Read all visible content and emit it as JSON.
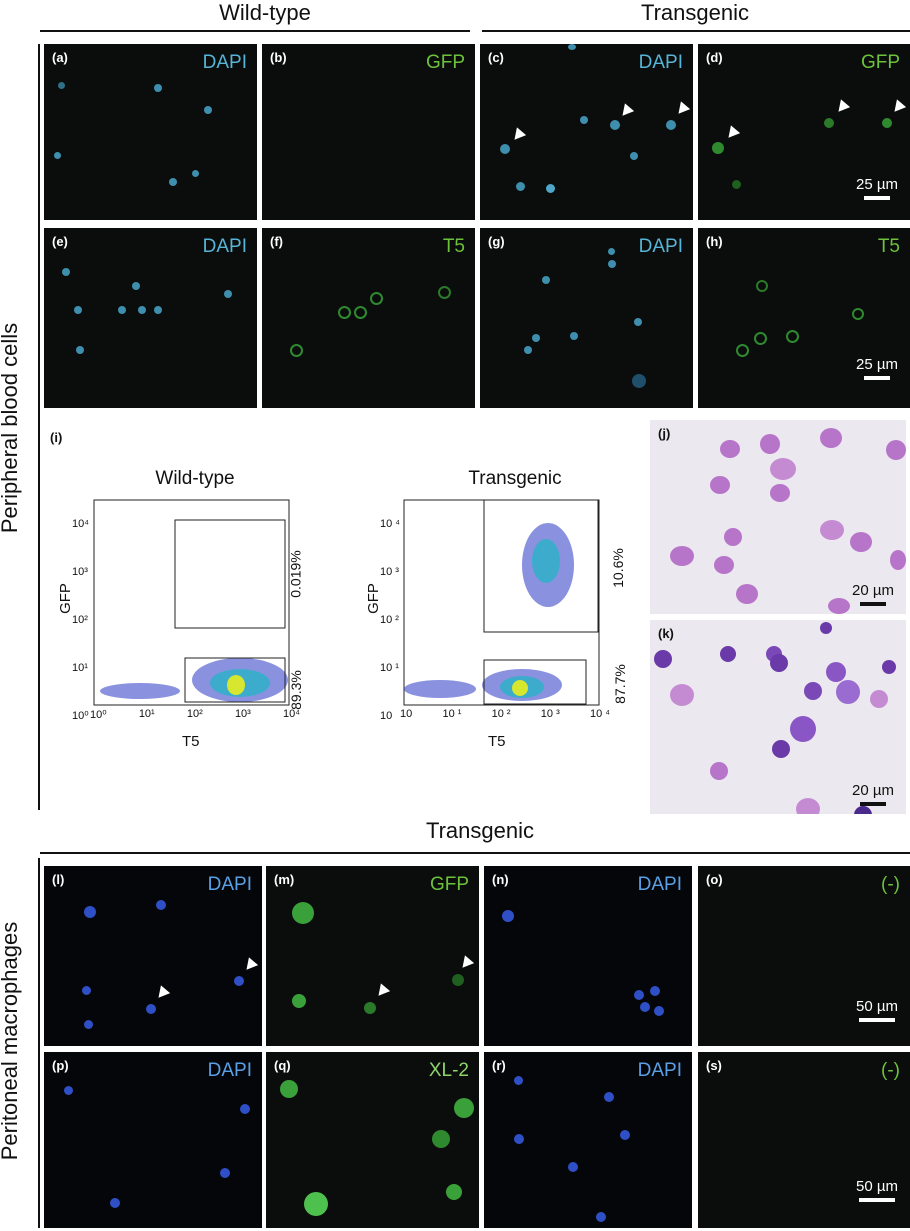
{
  "top": {
    "left_header": "Wild-type",
    "right_header": "Transgenic"
  },
  "side_labels": {
    "upper": "Peripheral blood cells",
    "lower": "Peritoneal macrophages"
  },
  "row1": [
    {
      "label": "(a)",
      "channel": "DAPI"
    },
    {
      "label": "(b)",
      "channel": "GFP"
    },
    {
      "label": "(c)",
      "channel": "DAPI"
    },
    {
      "label": "(d)",
      "channel": "GFP",
      "scale": "25 µm"
    }
  ],
  "row2": [
    {
      "label": "(e)",
      "channel": "DAPI"
    },
    {
      "label": "(f)",
      "channel": "T5"
    },
    {
      "label": "(g)",
      "channel": "DAPI"
    },
    {
      "label": "(h)",
      "channel": "T5",
      "scale": "25 µm"
    }
  ],
  "flow": {
    "label": "(i)",
    "plots": [
      {
        "title": "Wild-type",
        "ylabel": "GFP",
        "xlabel": "T5",
        "yticks": [
          "10⁴",
          "10³",
          "10²",
          "10¹",
          "10⁰"
        ],
        "xticks": [
          "10⁰",
          "10¹",
          "10²",
          "10³",
          "10⁴"
        ],
        "upper_pct": "0.019%",
        "lower_pct": "89.3%"
      },
      {
        "title": "Transgenic",
        "ylabel": "GFP",
        "xlabel": "T5",
        "yticks": [
          "10 ⁴",
          "10 ³",
          "10 ²",
          "10 ¹",
          "10"
        ],
        "xticks": [
          "10",
          "10 ¹",
          "10 ²",
          "10 ³",
          "10 ⁴"
        ],
        "upper_pct": "10.6%",
        "lower_pct": "87.7%"
      }
    ]
  },
  "stain": [
    {
      "label": "(j)",
      "scale": "20 µm"
    },
    {
      "label": "(k)",
      "scale": "20 µm"
    }
  ],
  "mid_header": "Transgenic",
  "row3": [
    {
      "label": "(l)",
      "channel": "DAPI"
    },
    {
      "label": "(m)",
      "channel": "GFP"
    },
    {
      "label": "(n)",
      "channel": "DAPI"
    },
    {
      "label": "(o)",
      "channel": "(-)",
      "scale": "50 µm"
    }
  ],
  "row4": [
    {
      "label": "(p)",
      "channel": "DAPI"
    },
    {
      "label": "(q)",
      "channel": "XL-2"
    },
    {
      "label": "(r)",
      "channel": "DAPI"
    },
    {
      "label": "(s)",
      "channel": "(-)",
      "scale": "50 µm"
    }
  ],
  "colors": {
    "dapi": "#56b5d8",
    "gfp": "#6cc23a",
    "dapi_macro": "#3a6be0"
  }
}
